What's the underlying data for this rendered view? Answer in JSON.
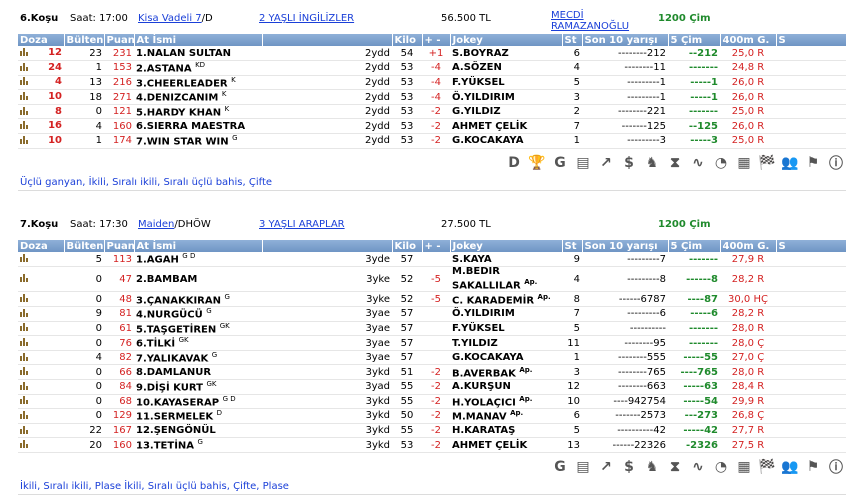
{
  "race1": {
    "no": "6.Koşu",
    "time": "Saat: 17:00",
    "type": "Kisa Vadeli  7",
    "type_suffix": "/D",
    "breed": "2 YAŞLI İNGİLİZLER",
    "prize": "56.500 TL",
    "sponsor": "MECDİ RAMAZANOĞLU",
    "surface": "1200 Çim",
    "headers": [
      "Doza",
      "Bülten",
      "Puan",
      "At İsmi",
      "",
      "Kilo",
      "+ -",
      "Jokey",
      "St",
      "Son 10 yarışı",
      "5 Çim",
      "400m G.",
      "S"
    ],
    "rows": [
      {
        "doz": "12",
        "bul": "23",
        "puan": "231",
        "name": "1.NALAN SULTAN",
        "sup": "",
        "age": "2ydd",
        "kilo": "54",
        "pm": "+1",
        "jokey": "S.BOYRAZ",
        "st": "6",
        "son": "--------212",
        "cim": "--212",
        "g400": "25,0 R"
      },
      {
        "doz": "24",
        "bul": "1",
        "puan": "153",
        "name": "2.ASTANA",
        "sup": "KD",
        "age": "2ydd",
        "kilo": "53",
        "pm": "-4",
        "jokey": "A.SÖZEN",
        "st": "4",
        "son": "--------11",
        "cim": "-------",
        "g400": "24,8 R"
      },
      {
        "doz": "4",
        "bul": "13",
        "puan": "216",
        "name": "3.CHEERLEADER",
        "sup": "K",
        "age": "2ydd",
        "kilo": "53",
        "pm": "-4",
        "jokey": "F.YÜKSEL",
        "st": "5",
        "son": "---------1",
        "cim": "-----1",
        "g400": "26,0 R"
      },
      {
        "doz": "10",
        "bul": "18",
        "puan": "271",
        "name": "4.DENIZCANIM",
        "sup": "K",
        "age": "2ydd",
        "kilo": "53",
        "pm": "-4",
        "jokey": "Ö.YILDIRIM",
        "st": "3",
        "son": "---------1",
        "cim": "-----1",
        "g400": "26,0 R"
      },
      {
        "doz": "8",
        "bul": "0",
        "puan": "121",
        "name": "5.HARDY KHAN",
        "sup": "K",
        "age": "2ydd",
        "kilo": "53",
        "pm": "-2",
        "jokey": "G.YILDIZ",
        "st": "2",
        "son": "--------221",
        "cim": "-------",
        "g400": "25,0 R"
      },
      {
        "doz": "16",
        "bul": "4",
        "puan": "160",
        "name": "6.SIERRA MAESTRA",
        "sup": "",
        "age": "2ydd",
        "kilo": "53",
        "pm": "-2",
        "jokey": "AHMET ÇELİK",
        "st": "7",
        "son": "-------125",
        "cim": "--125",
        "g400": "26,0 R"
      },
      {
        "doz": "10",
        "bul": "1",
        "puan": "174",
        "name": "7.WIN STAR WIN",
        "sup": "G",
        "age": "2ydd",
        "kilo": "53",
        "pm": "-2",
        "jokey": "G.KOCAKAYA",
        "st": "1",
        "son": "---------3",
        "cim": "-----3",
        "g400": "25,0 R"
      }
    ],
    "bet": "Üçlü ganyan, İkili, Sıralı ikili, Sıralı üçlü bahis, Çifte"
  },
  "race2": {
    "no": "7.Koşu",
    "time": "Saat: 17:30",
    "type": "Maiden",
    "type_suffix": "/DHÖW",
    "breed": "3 YAŞLI ARAPLAR",
    "prize": "27.500 TL",
    "surface": "1200 Çim",
    "headers": [
      "Doza",
      "Bülten",
      "Puan",
      "At İsmi",
      "",
      "Kilo",
      "+ -",
      "Jokey",
      "St",
      "Son 10 yarışı",
      "5 Çim",
      "400m G.",
      "S"
    ],
    "rows": [
      {
        "doz": "",
        "bul": "5",
        "puan": "113",
        "name": "1.AGAH",
        "sup": "G D",
        "age": "3yde",
        "kilo": "57",
        "pm": "",
        "jokey": "S.KAYA",
        "st": "9",
        "son": "---------7",
        "cim": "-------",
        "g400": "27,9 R"
      },
      {
        "doz": "",
        "bul": "0",
        "puan": "47",
        "name": "2.BAMBAM",
        "sup": "",
        "age": "3yke",
        "kilo": "52",
        "pm": "-5",
        "jokey": "M.BEDİR SAKALLILAR",
        "jsup": "Ap.",
        "st": "4",
        "son": "---------8",
        "cim": "------8",
        "g400": "28,2 R"
      },
      {
        "doz": "",
        "bul": "0",
        "puan": "48",
        "name": "3.ÇANAKKIRAN",
        "sup": "G",
        "age": "3yke",
        "kilo": "52",
        "pm": "-5",
        "jokey": "C. KARADEMİR",
        "jsup": "Ap.",
        "st": "8",
        "son": "------6787",
        "cim": "----87",
        "g400": "30,0 HÇ"
      },
      {
        "doz": "",
        "bul": "9",
        "puan": "81",
        "name": "4.NURGÜCÜ",
        "sup": "G",
        "age": "3yae",
        "kilo": "57",
        "pm": "",
        "jokey": "Ö.YILDIRIM",
        "st": "7",
        "son": "---------6",
        "cim": "-----6",
        "g400": "28,2 R"
      },
      {
        "doz": "",
        "bul": "0",
        "puan": "61",
        "name": "5.TAŞGETİREN",
        "sup": "GK",
        "age": "3yae",
        "kilo": "57",
        "pm": "",
        "jokey": "F.YÜKSEL",
        "st": "5",
        "son": "----------",
        "cim": "-------",
        "g400": "28,0 R"
      },
      {
        "doz": "",
        "bul": "0",
        "puan": "76",
        "name": "6.TİLKİ",
        "sup": "GK",
        "age": "3yae",
        "kilo": "57",
        "pm": "",
        "jokey": "T.YILDIZ",
        "st": "11",
        "son": "--------95",
        "cim": "-------",
        "g400": "28,0 Ç"
      },
      {
        "doz": "",
        "bul": "4",
        "puan": "82",
        "name": "7.YALIKAVAK",
        "sup": "G",
        "age": "3yae",
        "kilo": "57",
        "pm": "",
        "jokey": "G.KOCAKAYA",
        "st": "1",
        "son": "--------555",
        "cim": "-----55",
        "g400": "27,0 Ç"
      },
      {
        "doz": "",
        "bul": "0",
        "puan": "66",
        "name": "8.DAMLANUR",
        "sup": "",
        "age": "3ykd",
        "kilo": "51",
        "pm": "-2",
        "jokey": "B.AVERBAK",
        "jsup": "Ap.",
        "st": "3",
        "son": "--------765",
        "cim": "----765",
        "g400": "28,0 R"
      },
      {
        "doz": "",
        "bul": "0",
        "puan": "84",
        "name": "9.DİŞİ KURT",
        "sup": "GK",
        "age": "3yad",
        "kilo": "55",
        "pm": "-2",
        "jokey": "A.KURŞUN",
        "st": "12",
        "son": "--------663",
        "cim": "-----63",
        "g400": "28,4 R"
      },
      {
        "doz": "",
        "bul": "0",
        "puan": "68",
        "name": "10.KAYASERAP",
        "sup": "G D",
        "age": "3ykd",
        "kilo": "55",
        "pm": "-2",
        "jokey": "H.YOLAÇICI",
        "jsup": "Ap.",
        "st": "10",
        "son": "----942754",
        "cim": "-----54",
        "g400": "29,9 R"
      },
      {
        "doz": "",
        "bul": "0",
        "puan": "129",
        "name": "11.SERMELEK",
        "sup": "D",
        "age": "3ykd",
        "kilo": "50",
        "pm": "-2",
        "jokey": "M.MANAV",
        "jsup": "Ap.",
        "st": "6",
        "son": "-------2573",
        "cim": "---273",
        "g400": "26,8 Ç"
      },
      {
        "doz": "",
        "bul": "22",
        "puan": "167",
        "name": "12.ŞENGÖNÜL",
        "sup": "",
        "age": "3ykd",
        "kilo": "55",
        "pm": "-2",
        "jokey": "H.KARATAŞ",
        "st": "5",
        "son": "----------42",
        "cim": "-----42",
        "g400": "27,7 R"
      },
      {
        "doz": "",
        "bul": "20",
        "puan": "160",
        "name": "13.TETİNA",
        "sup": "G",
        "age": "3ykd",
        "kilo": "53",
        "pm": "-2",
        "jokey": "AHMET ÇELİK",
        "st": "13",
        "son": "------22326",
        "cim": "-2326",
        "g400": "27,5 R"
      }
    ],
    "bet": "İkili, Sıralı ikili, Plase İkili, Sıralı üçlü bahis, Çifte, Plase"
  },
  "icons1": [
    "D",
    "trophy",
    "G",
    "doc",
    "chart-up",
    "$",
    "horses",
    "hourglass",
    "graph",
    "clock",
    "calc",
    "horse-race",
    "people",
    "flag",
    "info"
  ],
  "icons2": [
    "G",
    "doc",
    "chart-up",
    "$",
    "horses",
    "hourglass",
    "graph",
    "clock",
    "calc",
    "horse-race",
    "people",
    "flag",
    "info"
  ]
}
